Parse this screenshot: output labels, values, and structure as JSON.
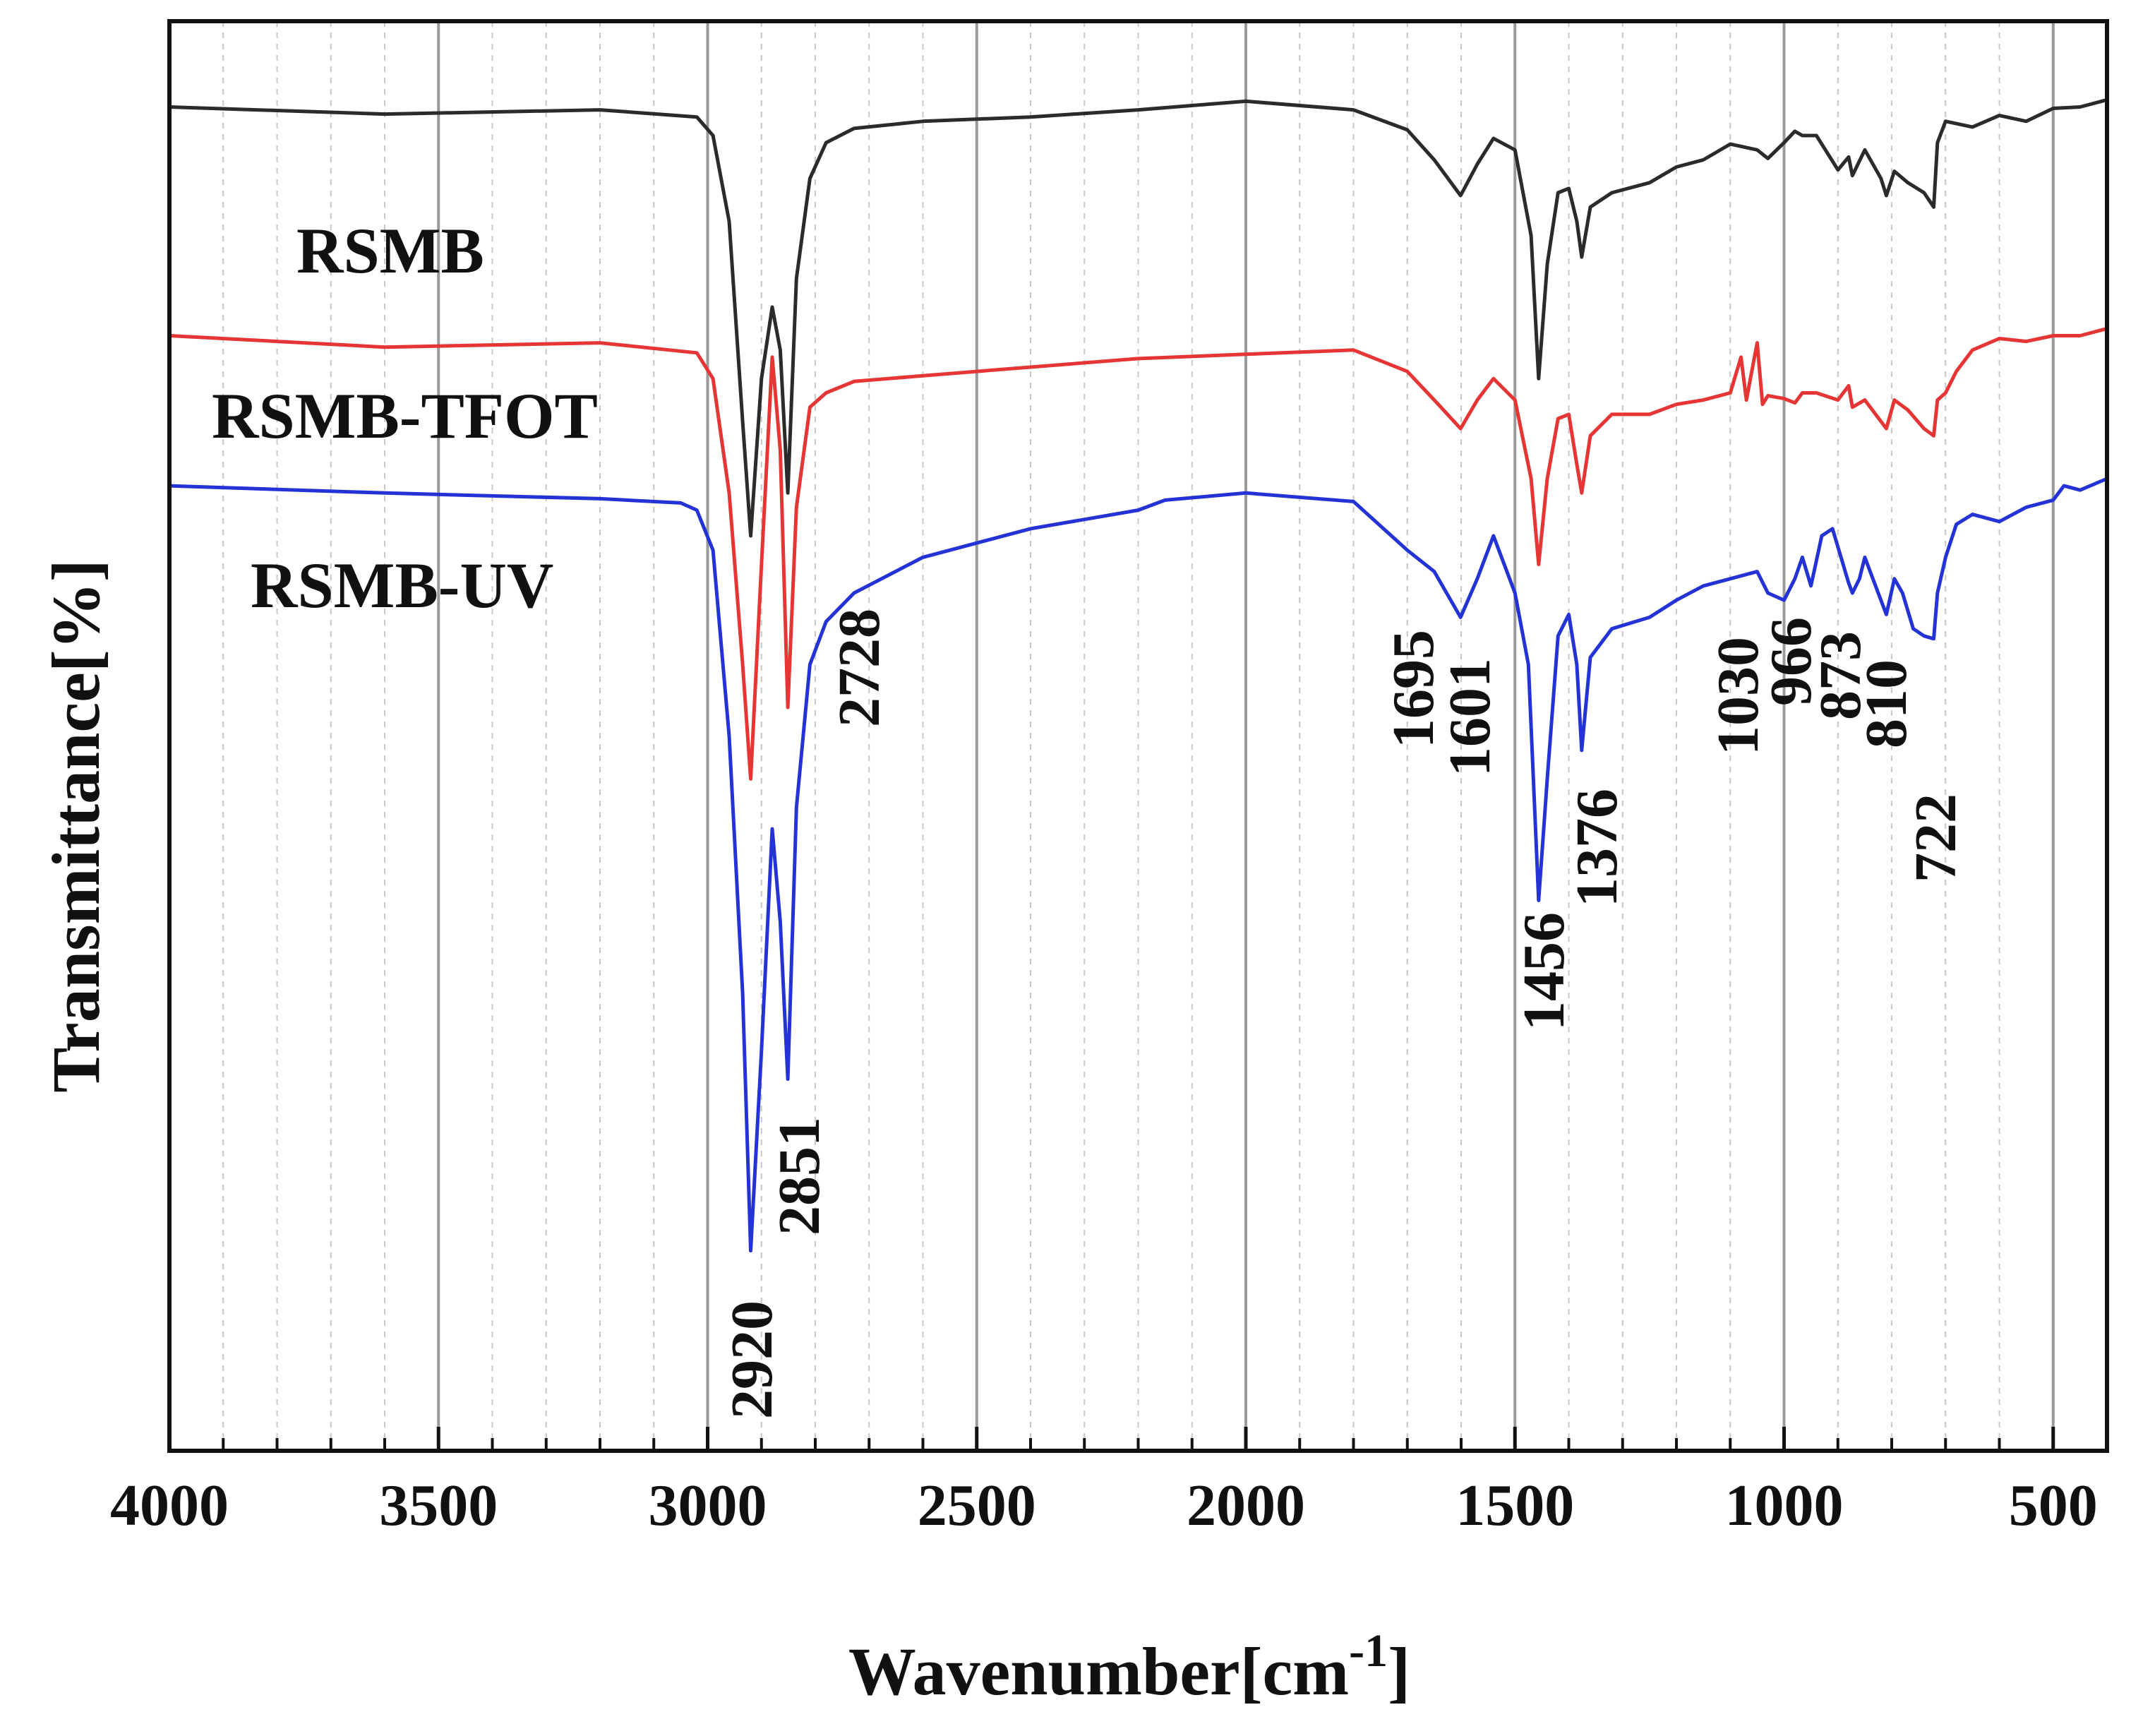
{
  "chart_data": {
    "type": "line",
    "title": "",
    "xlabel": "Wavenumber[cm",
    "xlabel_superscript": "-1",
    "xlabel_close": "]",
    "ylabel": "Transmittance[%]",
    "xlim": [
      4000,
      400
    ],
    "ylim": [
      0,
      100
    ],
    "x_ticks": [
      4000,
      3500,
      3000,
      2500,
      2000,
      1500,
      1000,
      500
    ],
    "grid": true,
    "series": [
      {
        "name": "RSMB",
        "color": "#2b2b2b",
        "points": [
          [
            4000,
            94
          ],
          [
            3600,
            93.5
          ],
          [
            3200,
            93.8
          ],
          [
            3020,
            93.3
          ],
          [
            2990,
            92
          ],
          [
            2960,
            86
          ],
          [
            2935,
            72
          ],
          [
            2920,
            64
          ],
          [
            2900,
            75
          ],
          [
            2880,
            80
          ],
          [
            2865,
            77
          ],
          [
            2851,
            67
          ],
          [
            2835,
            82
          ],
          [
            2810,
            89
          ],
          [
            2780,
            91.5
          ],
          [
            2728,
            92.5
          ],
          [
            2600,
            93
          ],
          [
            2400,
            93.3
          ],
          [
            2200,
            93.8
          ],
          [
            2000,
            94.4
          ],
          [
            1800,
            93.8
          ],
          [
            1700,
            92.4
          ],
          [
            1650,
            90.3
          ],
          [
            1601,
            87.8
          ],
          [
            1570,
            90
          ],
          [
            1540,
            91.8
          ],
          [
            1500,
            91
          ],
          [
            1470,
            85
          ],
          [
            1456,
            75
          ],
          [
            1440,
            83
          ],
          [
            1420,
            88
          ],
          [
            1400,
            88.3
          ],
          [
            1385,
            86
          ],
          [
            1376,
            83.5
          ],
          [
            1360,
            87
          ],
          [
            1320,
            88
          ],
          [
            1250,
            88.7
          ],
          [
            1200,
            89.8
          ],
          [
            1150,
            90.3
          ],
          [
            1100,
            91.4
          ],
          [
            1050,
            91
          ],
          [
            1030,
            90.4
          ],
          [
            1000,
            91.5
          ],
          [
            980,
            92.3
          ],
          [
            966,
            92
          ],
          [
            940,
            92
          ],
          [
            900,
            89.6
          ],
          [
            880,
            90.5
          ],
          [
            873,
            89.2
          ],
          [
            850,
            91
          ],
          [
            820,
            89
          ],
          [
            810,
            87.8
          ],
          [
            795,
            89.5
          ],
          [
            770,
            88.7
          ],
          [
            740,
            88
          ],
          [
            722,
            87
          ],
          [
            715,
            91.5
          ],
          [
            700,
            93
          ],
          [
            650,
            92.6
          ],
          [
            600,
            93.4
          ],
          [
            550,
            93
          ],
          [
            500,
            93.9
          ],
          [
            450,
            94
          ],
          [
            400,
            94.5
          ]
        ]
      },
      {
        "name": "RSMB-TFOT",
        "color": "#e53535",
        "points": [
          [
            4000,
            78
          ],
          [
            3600,
            77.2
          ],
          [
            3200,
            77.5
          ],
          [
            3020,
            76.8
          ],
          [
            2990,
            75
          ],
          [
            2960,
            67
          ],
          [
            2935,
            55
          ],
          [
            2920,
            47
          ],
          [
            2900,
            62
          ],
          [
            2880,
            76.5
          ],
          [
            2865,
            70
          ],
          [
            2851,
            52
          ],
          [
            2835,
            66
          ],
          [
            2810,
            73
          ],
          [
            2780,
            74
          ],
          [
            2728,
            74.8
          ],
          [
            2600,
            75.2
          ],
          [
            2400,
            75.8
          ],
          [
            2200,
            76.4
          ],
          [
            2000,
            76.7
          ],
          [
            1800,
            77
          ],
          [
            1700,
            75.5
          ],
          [
            1650,
            73.5
          ],
          [
            1601,
            71.5
          ],
          [
            1570,
            73.5
          ],
          [
            1540,
            75
          ],
          [
            1500,
            73.5
          ],
          [
            1470,
            68
          ],
          [
            1456,
            62
          ],
          [
            1440,
            68
          ],
          [
            1420,
            72.2
          ],
          [
            1400,
            72.5
          ],
          [
            1385,
            69
          ],
          [
            1376,
            67
          ],
          [
            1360,
            71
          ],
          [
            1320,
            72.5
          ],
          [
            1250,
            72.5
          ],
          [
            1200,
            73.2
          ],
          [
            1150,
            73.5
          ],
          [
            1100,
            74
          ],
          [
            1080,
            76.5
          ],
          [
            1070,
            73.5
          ],
          [
            1050,
            77.5
          ],
          [
            1040,
            73.2
          ],
          [
            1030,
            73.8
          ],
          [
            1000,
            73.6
          ],
          [
            980,
            73.3
          ],
          [
            966,
            74
          ],
          [
            940,
            74
          ],
          [
            900,
            73.5
          ],
          [
            880,
            74.5
          ],
          [
            873,
            73
          ],
          [
            850,
            73.5
          ],
          [
            820,
            72
          ],
          [
            810,
            71.5
          ],
          [
            795,
            73.5
          ],
          [
            770,
            72.8
          ],
          [
            740,
            71.5
          ],
          [
            722,
            71
          ],
          [
            715,
            73.5
          ],
          [
            700,
            74
          ],
          [
            680,
            75.5
          ],
          [
            650,
            77
          ],
          [
            600,
            77.8
          ],
          [
            550,
            77.6
          ],
          [
            500,
            78
          ],
          [
            450,
            78
          ],
          [
            400,
            78.5
          ]
        ]
      },
      {
        "name": "RSMB-UV",
        "color": "#2433d6",
        "points": [
          [
            4000,
            67.5
          ],
          [
            3600,
            67
          ],
          [
            3200,
            66.6
          ],
          [
            3050,
            66.3
          ],
          [
            3020,
            65.8
          ],
          [
            2990,
            63
          ],
          [
            2960,
            50
          ],
          [
            2935,
            32
          ],
          [
            2920,
            14
          ],
          [
            2900,
            28
          ],
          [
            2880,
            43.5
          ],
          [
            2865,
            37
          ],
          [
            2851,
            26
          ],
          [
            2835,
            45
          ],
          [
            2810,
            55
          ],
          [
            2780,
            58
          ],
          [
            2728,
            60
          ],
          [
            2600,
            62.5
          ],
          [
            2400,
            64.5
          ],
          [
            2200,
            65.8
          ],
          [
            2150,
            66.5
          ],
          [
            2000,
            67
          ],
          [
            1800,
            66.4
          ],
          [
            1700,
            63
          ],
          [
            1650,
            61.5
          ],
          [
            1601,
            58.3
          ],
          [
            1570,
            61
          ],
          [
            1540,
            64
          ],
          [
            1500,
            60
          ],
          [
            1475,
            55
          ],
          [
            1456,
            38.5
          ],
          [
            1440,
            47
          ],
          [
            1420,
            57
          ],
          [
            1400,
            58.5
          ],
          [
            1385,
            55
          ],
          [
            1376,
            49
          ],
          [
            1360,
            55.5
          ],
          [
            1320,
            57.5
          ],
          [
            1250,
            58.3
          ],
          [
            1200,
            59.5
          ],
          [
            1150,
            60.5
          ],
          [
            1100,
            61
          ],
          [
            1050,
            61.5
          ],
          [
            1030,
            60
          ],
          [
            1000,
            59.5
          ],
          [
            980,
            61
          ],
          [
            966,
            62.5
          ],
          [
            950,
            60.5
          ],
          [
            930,
            64
          ],
          [
            910,
            64.5
          ],
          [
            880,
            60.7
          ],
          [
            873,
            60
          ],
          [
            860,
            61
          ],
          [
            850,
            62.5
          ],
          [
            830,
            60.5
          ],
          [
            810,
            58.5
          ],
          [
            795,
            61
          ],
          [
            780,
            60
          ],
          [
            760,
            57.5
          ],
          [
            740,
            57
          ],
          [
            722,
            56.8
          ],
          [
            715,
            60
          ],
          [
            700,
            62.5
          ],
          [
            680,
            64.8
          ],
          [
            650,
            65.5
          ],
          [
            600,
            65
          ],
          [
            550,
            66
          ],
          [
            500,
            66.5
          ],
          [
            480,
            67.5
          ],
          [
            450,
            67.2
          ],
          [
            400,
            68
          ]
        ]
      }
    ],
    "annotations": [
      {
        "text": "RSMB",
        "series": "RSMB"
      },
      {
        "text": "RSMB-TFOT",
        "series": "RSMB-TFOT"
      },
      {
        "text": "RSMB-UV",
        "series": "RSMB-UV"
      },
      {
        "text": "2920",
        "x": 2920
      },
      {
        "text": "2851",
        "x": 2851
      },
      {
        "text": "2728",
        "x": 2728
      },
      {
        "text": "1695",
        "x": 1695
      },
      {
        "text": "1601",
        "x": 1601
      },
      {
        "text": "1456",
        "x": 1456
      },
      {
        "text": "1376",
        "x": 1376
      },
      {
        "text": "1030",
        "x": 1030
      },
      {
        "text": "966",
        "x": 966
      },
      {
        "text": "873",
        "x": 873
      },
      {
        "text": "810",
        "x": 810
      },
      {
        "text": "722",
        "x": 722
      }
    ]
  }
}
